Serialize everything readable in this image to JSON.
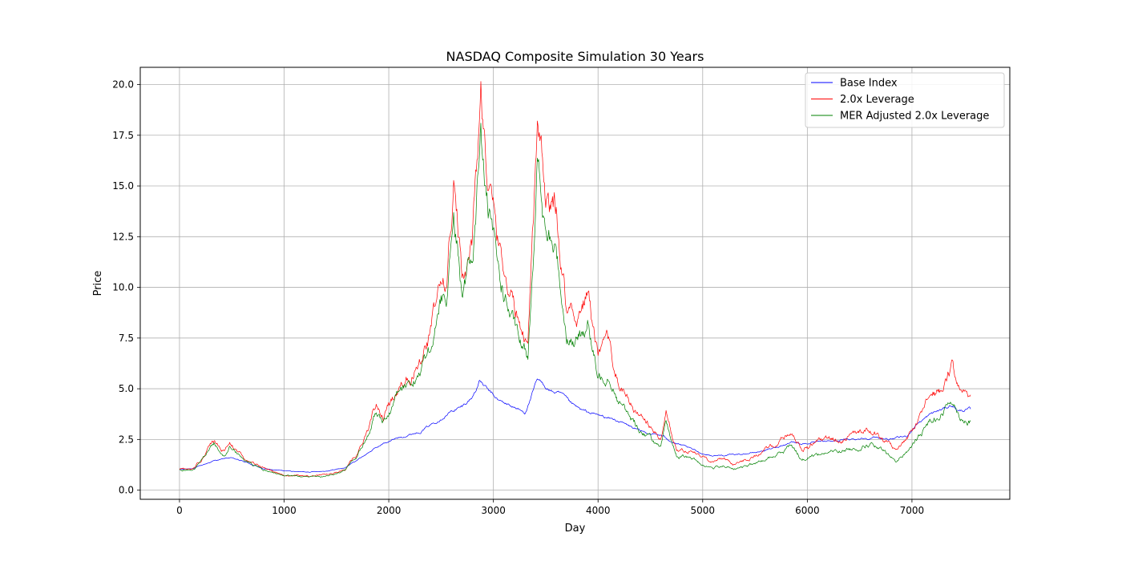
{
  "chart_data": {
    "type": "line",
    "title": "NASDAQ Composite Simulation 30 Years",
    "xlabel": "Day",
    "ylabel": "Price",
    "xlim": [
      -375,
      7935
    ],
    "ylim": [
      -0.45,
      20.85
    ],
    "xticks": [
      0,
      1000,
      2000,
      3000,
      4000,
      5000,
      6000,
      7000
    ],
    "xtick_labels": [
      "0",
      "1000",
      "2000",
      "3000",
      "4000",
      "5000",
      "6000",
      "7000"
    ],
    "yticks": [
      0.0,
      2.5,
      5.0,
      7.5,
      10.0,
      12.5,
      15.0,
      17.5,
      20.0
    ],
    "ytick_labels": [
      "0.0",
      "2.5",
      "5.0",
      "7.5",
      "10.0",
      "12.5",
      "15.0",
      "17.5",
      "20.0"
    ],
    "grid": true,
    "legend": "top-right",
    "series": [
      {
        "name": "Base Index",
        "color": "#0000ff",
        "x": [
          0,
          150,
          330,
          480,
          650,
          800,
          1000,
          1200,
          1400,
          1580,
          1700,
          1850,
          1950,
          2100,
          2300,
          2450,
          2600,
          2700,
          2800,
          2870,
          2950,
          3050,
          3200,
          3300,
          3420,
          3550,
          3650,
          3750,
          3850,
          4000,
          4200,
          4400,
          4600,
          4750,
          4900,
          5000,
          5100,
          5300,
          5500,
          5700,
          5850,
          5950,
          6100,
          6300,
          6500,
          6650,
          6800,
          6950,
          7050,
          7200,
          7300,
          7380,
          7450,
          7560
        ],
        "y": [
          1.0,
          1.1,
          1.45,
          1.6,
          1.35,
          1.05,
          0.95,
          0.9,
          0.95,
          1.1,
          1.5,
          2.0,
          2.3,
          2.6,
          2.9,
          3.4,
          3.9,
          4.1,
          4.6,
          5.4,
          4.9,
          4.4,
          4.1,
          3.8,
          5.4,
          4.9,
          4.7,
          4.2,
          3.9,
          3.7,
          3.4,
          2.9,
          2.7,
          2.3,
          2.0,
          1.8,
          1.7,
          1.75,
          1.85,
          2.1,
          2.4,
          2.3,
          2.35,
          2.45,
          2.55,
          2.6,
          2.5,
          2.65,
          3.3,
          3.8,
          4.0,
          4.2,
          3.9,
          4.0
        ]
      },
      {
        "name": "2.0x Leverage",
        "color": "#ff0000",
        "x": [
          0,
          150,
          330,
          430,
          480,
          650,
          800,
          1000,
          1200,
          1400,
          1580,
          1700,
          1800,
          1880,
          1950,
          2100,
          2250,
          2400,
          2500,
          2550,
          2620,
          2700,
          2800,
          2880,
          2950,
          3050,
          3150,
          3250,
          3330,
          3420,
          3500,
          3600,
          3700,
          3800,
          3900,
          4000,
          4100,
          4200,
          4300,
          4400,
          4500,
          4600,
          4650,
          4750,
          4900,
          5000,
          5100,
          5200,
          5300,
          5500,
          5700,
          5850,
          5950,
          6050,
          6250,
          6450,
          6600,
          6750,
          6850,
          6950,
          7050,
          7200,
          7300,
          7380,
          7450,
          7560
        ],
        "y": [
          1.0,
          1.1,
          2.4,
          1.9,
          2.3,
          1.5,
          1.1,
          0.75,
          0.7,
          0.75,
          1.0,
          1.8,
          3.0,
          4.1,
          3.6,
          5.1,
          6.1,
          7.8,
          10.3,
          10.0,
          15.0,
          10.5,
          12.5,
          19.5,
          15.0,
          12.0,
          10.0,
          8.0,
          7.5,
          18.4,
          14.0,
          13.5,
          9.0,
          8.5,
          9.8,
          6.4,
          7.0,
          5.2,
          4.3,
          3.6,
          3.1,
          2.4,
          3.8,
          2.0,
          1.9,
          1.6,
          1.4,
          1.6,
          1.3,
          1.7,
          2.2,
          2.9,
          2.0,
          2.3,
          2.5,
          2.7,
          3.0,
          2.4,
          1.9,
          2.5,
          3.3,
          4.8,
          5.0,
          6.1,
          5.0,
          4.7
        ]
      },
      {
        "name": "MER Adjusted 2.0x Leverage",
        "color": "#008000",
        "x": [
          0,
          150,
          330,
          430,
          480,
          650,
          800,
          1000,
          1200,
          1400,
          1580,
          1700,
          1800,
          1880,
          1950,
          2100,
          2250,
          2400,
          2500,
          2550,
          2620,
          2700,
          2800,
          2880,
          2950,
          3050,
          3150,
          3250,
          3330,
          3420,
          3500,
          3600,
          3700,
          3800,
          3900,
          4000,
          4100,
          4200,
          4300,
          4400,
          4500,
          4600,
          4650,
          4750,
          4900,
          5000,
          5100,
          5200,
          5300,
          5500,
          5700,
          5850,
          5950,
          6050,
          6250,
          6450,
          6600,
          6750,
          6850,
          6950,
          7050,
          7200,
          7300,
          7380,
          7450,
          7560
        ],
        "y": [
          1.0,
          1.05,
          2.3,
          1.8,
          2.2,
          1.4,
          1.0,
          0.7,
          0.65,
          0.68,
          0.95,
          1.7,
          2.8,
          3.9,
          3.4,
          4.8,
          5.6,
          7.1,
          9.5,
          9.2,
          13.8,
          9.6,
          11.3,
          17.5,
          13.5,
          10.6,
          8.8,
          7.1,
          6.6,
          16.2,
          12.3,
          11.7,
          7.8,
          7.3,
          8.4,
          5.4,
          5.9,
          4.4,
          3.6,
          3.0,
          2.6,
          2.0,
          3.2,
          1.7,
          1.55,
          1.25,
          1.1,
          1.25,
          1.0,
          1.3,
          1.7,
          2.3,
          1.5,
          1.75,
          1.9,
          2.05,
          2.3,
          1.8,
          1.4,
          1.9,
          2.5,
          3.6,
          3.8,
          4.6,
          3.7,
          3.4
        ]
      }
    ]
  }
}
